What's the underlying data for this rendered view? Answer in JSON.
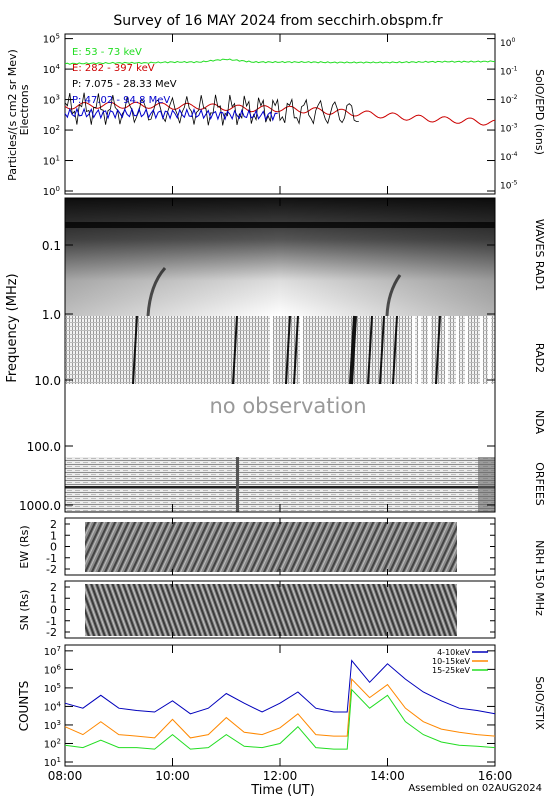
{
  "title": "Survey of 16 MAY 2024 from secchirh.obspm.fr",
  "footer": "Assembled on 02AUG2024",
  "xlabel": "Time (UT)",
  "colors": {
    "e1": "#22dd22",
    "e2": "#cc0000",
    "p1": "#000000",
    "p2": "#0000cc",
    "stix1": "#0000bb",
    "stix2": "#ff8800",
    "stix3": "#22dd22"
  },
  "panels": {
    "epd": {
      "ylabel1": "Particles/(s cm2 sr Mev)",
      "ylabel2": "Electrons",
      "right_label": "SolO/EPD (ions)",
      "ticks_left": [
        "10^5",
        "10^4",
        "10^3",
        "10^2",
        "10^1",
        "10^0"
      ],
      "ticks_right": [
        "10^0",
        "10^-1",
        "10^-2",
        "10^-3",
        "10^-4",
        "10^-5"
      ],
      "legend": [
        "E: 53 - 73 keV",
        "E: 282 - 397 keV",
        "P: 7.075 - 28.33 MeV",
        "P: 47.02 - 94.8 MeV"
      ]
    },
    "freq": {
      "ylabel": "Frequency (MHz)",
      "ticks": [
        "0.1",
        "1.0",
        "10.0",
        "100.0",
        "1000.0"
      ],
      "labels": [
        "WAVES RAD1",
        "RAD2",
        "NDA",
        "ORFEES"
      ],
      "no_obs": "no observation"
    },
    "nrh": {
      "right_label": "NRH 150 MHz",
      "ew_label": "EW (Rs)",
      "sn_label": "SN (Rs)",
      "ticks": [
        "2",
        "1",
        "0",
        "-1",
        "-2"
      ]
    },
    "stix": {
      "ylabel": "COUNTS",
      "right_label": "SolO/STIX",
      "ticks": [
        "10^7",
        "10^6",
        "10^5",
        "10^4",
        "10^3",
        "10^2",
        "10^1"
      ],
      "legend": [
        "4-10keV",
        "10-15keV",
        "15-25keV"
      ]
    }
  },
  "time_ticks": [
    "08:00",
    "10:00",
    "12:00",
    "14:00",
    "16:00"
  ],
  "chart_data": [
    {
      "type": "line",
      "panel": "SolO/EPD",
      "x": [
        "08:00",
        "08:30",
        "09:00",
        "09:30",
        "10:00",
        "10:30",
        "11:00",
        "11:30",
        "12:00",
        "12:30",
        "13:00",
        "13:30",
        "14:00",
        "14:30",
        "15:00",
        "15:30",
        "16:00"
      ],
      "ylim": [
        1,
        100000
      ],
      "yscale": "log",
      "series": [
        {
          "name": "E: 53 - 73 keV",
          "values": [
            15000,
            15500,
            16000,
            16000,
            17000,
            17000,
            21000,
            17000,
            17000,
            17000,
            16500,
            16500,
            16500,
            17000,
            17500,
            17500,
            18000
          ]
        },
        {
          "name": "E: 282 - 397 keV",
          "values": [
            600,
            650,
            650,
            650,
            600,
            600,
            550,
            500,
            500,
            450,
            400,
            350,
            300,
            250,
            220,
            200,
            170
          ]
        },
        {
          "name": "P: 7.075 - 28.33 MeV",
          "values": [
            500,
            500,
            450,
            450,
            450,
            450,
            450,
            450,
            420,
            400,
            380,
            360,
            0,
            0,
            0,
            0,
            0
          ]
        },
        {
          "name": "P: 47.02 - 94.8 MeV",
          "values": [
            350,
            350,
            350,
            350,
            340,
            330,
            320,
            310,
            300,
            0,
            0,
            0,
            0,
            0,
            0,
            0,
            0
          ]
        }
      ]
    },
    {
      "type": "line",
      "panel": "SolO/STIX",
      "x": [
        "08:00",
        "08:20",
        "08:40",
        "09:00",
        "09:20",
        "09:40",
        "10:00",
        "10:20",
        "10:40",
        "11:00",
        "11:20",
        "11:40",
        "12:00",
        "12:20",
        "12:40",
        "13:00",
        "13:15",
        "13:20",
        "13:40",
        "14:00",
        "14:20",
        "14:40",
        "15:00",
        "15:20",
        "15:40",
        "16:00"
      ],
      "ylim": [
        10,
        10000000
      ],
      "yscale": "log",
      "series": [
        {
          "name": "4-10keV",
          "values": [
            15000,
            8000,
            40000,
            8000,
            6000,
            5000,
            20000,
            4000,
            8000,
            50000,
            15000,
            5000,
            15000,
            60000,
            8000,
            5000,
            5000,
            3000000,
            200000,
            2000000,
            300000,
            60000,
            20000,
            8000,
            6000,
            4000
          ]
        },
        {
          "name": "10-15keV",
          "values": [
            800,
            300,
            1500,
            300,
            250,
            200,
            2000,
            200,
            300,
            2500,
            400,
            300,
            700,
            4000,
            300,
            250,
            250,
            300000,
            30000,
            150000,
            8000,
            1500,
            600,
            400,
            300,
            250
          ]
        },
        {
          "name": "15-25keV",
          "values": [
            80,
            60,
            150,
            60,
            60,
            50,
            300,
            50,
            60,
            300,
            70,
            60,
            100,
            800,
            60,
            50,
            50,
            80000,
            8000,
            40000,
            1500,
            300,
            120,
            80,
            70,
            60
          ]
        }
      ]
    }
  ]
}
